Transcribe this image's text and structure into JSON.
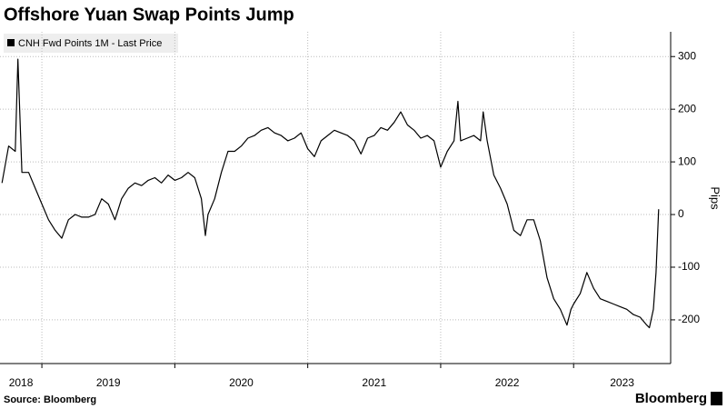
{
  "chart_data": {
    "type": "line",
    "title": "Offshore Yuan Swap Points Jump",
    "source": "Source: Bloomberg",
    "brand": "Bloomberg",
    "y_axis_label": "Pips",
    "series": [
      {
        "name": "CNH Fwd Points 1M - Last Price",
        "color": "#000000",
        "values": [
          60,
          130,
          120,
          295,
          80,
          80,
          50,
          20,
          -10,
          -30,
          -45,
          -10,
          0,
          -5,
          -5,
          0,
          30,
          20,
          -10,
          30,
          50,
          60,
          55,
          65,
          70,
          60,
          75,
          65,
          70,
          80,
          70,
          30,
          -40,
          0,
          30,
          80,
          120,
          120,
          130,
          145,
          150,
          160,
          165,
          155,
          150,
          140,
          145,
          155,
          125,
          110,
          140,
          150,
          160,
          155,
          150,
          140,
          115,
          145,
          150,
          165,
          160,
          175,
          195,
          170,
          160,
          145,
          150,
          140,
          90,
          120,
          140,
          215,
          140,
          145,
          150,
          140,
          195,
          140,
          75,
          50,
          20,
          -30,
          -40,
          -10,
          -10,
          -50,
          -120,
          -160,
          -180,
          -210,
          -180,
          -170,
          -150,
          -110,
          -140,
          -160,
          -165,
          -170,
          -175,
          -180,
          -190,
          -195,
          -210,
          -215,
          -180,
          -110,
          10
        ]
      }
    ],
    "x": [
      2018.7,
      2018.75,
      2018.8,
      2018.82,
      2018.85,
      2018.9,
      2018.95,
      2019.0,
      2019.05,
      2019.1,
      2019.15,
      2019.2,
      2019.25,
      2019.3,
      2019.35,
      2019.4,
      2019.45,
      2019.5,
      2019.55,
      2019.6,
      2019.65,
      2019.7,
      2019.75,
      2019.8,
      2019.85,
      2019.9,
      2019.95,
      2020.0,
      2020.05,
      2020.1,
      2020.15,
      2020.2,
      2020.23,
      2020.25,
      2020.3,
      2020.35,
      2020.4,
      2020.45,
      2020.5,
      2020.55,
      2020.6,
      2020.65,
      2020.7,
      2020.75,
      2020.8,
      2020.85,
      2020.9,
      2020.95,
      2021.0,
      2021.05,
      2021.1,
      2021.15,
      2021.2,
      2021.25,
      2021.3,
      2021.35,
      2021.4,
      2021.45,
      2021.5,
      2021.55,
      2021.6,
      2021.65,
      2021.7,
      2021.75,
      2021.8,
      2021.85,
      2021.9,
      2021.95,
      2022.0,
      2022.05,
      2022.1,
      2022.13,
      2022.15,
      2022.2,
      2022.25,
      2022.3,
      2022.32,
      2022.35,
      2022.4,
      2022.45,
      2022.5,
      2022.55,
      2022.6,
      2022.65,
      2022.7,
      2022.75,
      2022.8,
      2022.85,
      2022.9,
      2022.95,
      2022.98,
      2023.0,
      2023.05,
      2023.1,
      2023.15,
      2023.2,
      2023.25,
      2023.3,
      2023.35,
      2023.4,
      2023.45,
      2023.5,
      2023.55,
      2023.57,
      2023.6,
      2023.62,
      2023.64
    ],
    "xlim": [
      2018.685,
      2023.73
    ],
    "xticks": [
      2018,
      2019,
      2020,
      2021,
      2022,
      2023
    ],
    "ylim": [
      -283,
      347
    ],
    "yticks": [
      -200,
      -100,
      0,
      100,
      200,
      300
    ],
    "grid": true
  }
}
